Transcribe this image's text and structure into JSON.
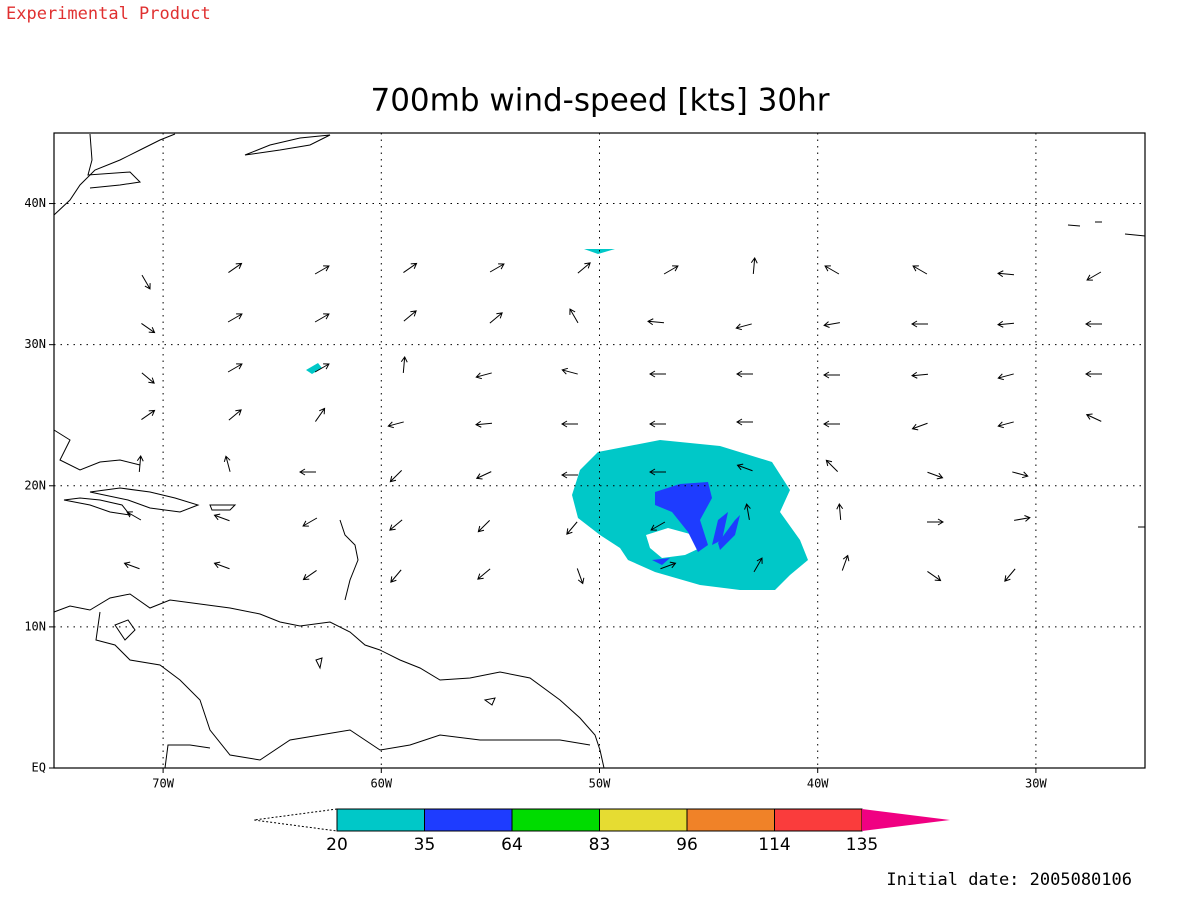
{
  "header": "Experimental Product",
  "chart_data": {
    "type": "map",
    "title": "700mb wind-speed [kts] 30hr",
    "xlim": [
      -75,
      -25
    ],
    "xticks": [
      {
        "value": -70,
        "label": "70W"
      },
      {
        "value": -60,
        "label": "60W"
      },
      {
        "value": -50,
        "label": "50W"
      },
      {
        "value": -40,
        "label": "40W"
      },
      {
        "value": -30,
        "label": "30W"
      }
    ],
    "ylim": [
      0,
      45
    ],
    "yticks": [
      {
        "value": 0,
        "label": "EQ"
      },
      {
        "value": 10,
        "label": "10N"
      },
      {
        "value": 20,
        "label": "20N"
      },
      {
        "value": 30,
        "label": "30N"
      },
      {
        "value": 40,
        "label": "40N"
      }
    ],
    "grid": true,
    "colorbar": {
      "levels": [
        20,
        35,
        64,
        83,
        96,
        114,
        135
      ],
      "colors": [
        "#00c8c8",
        "#1e3cff",
        "#00dc00",
        "#e6dc32",
        "#f08228",
        "#fa3c3c",
        "#f00082"
      ]
    }
  },
  "footer": "Initial date: 2005080106"
}
